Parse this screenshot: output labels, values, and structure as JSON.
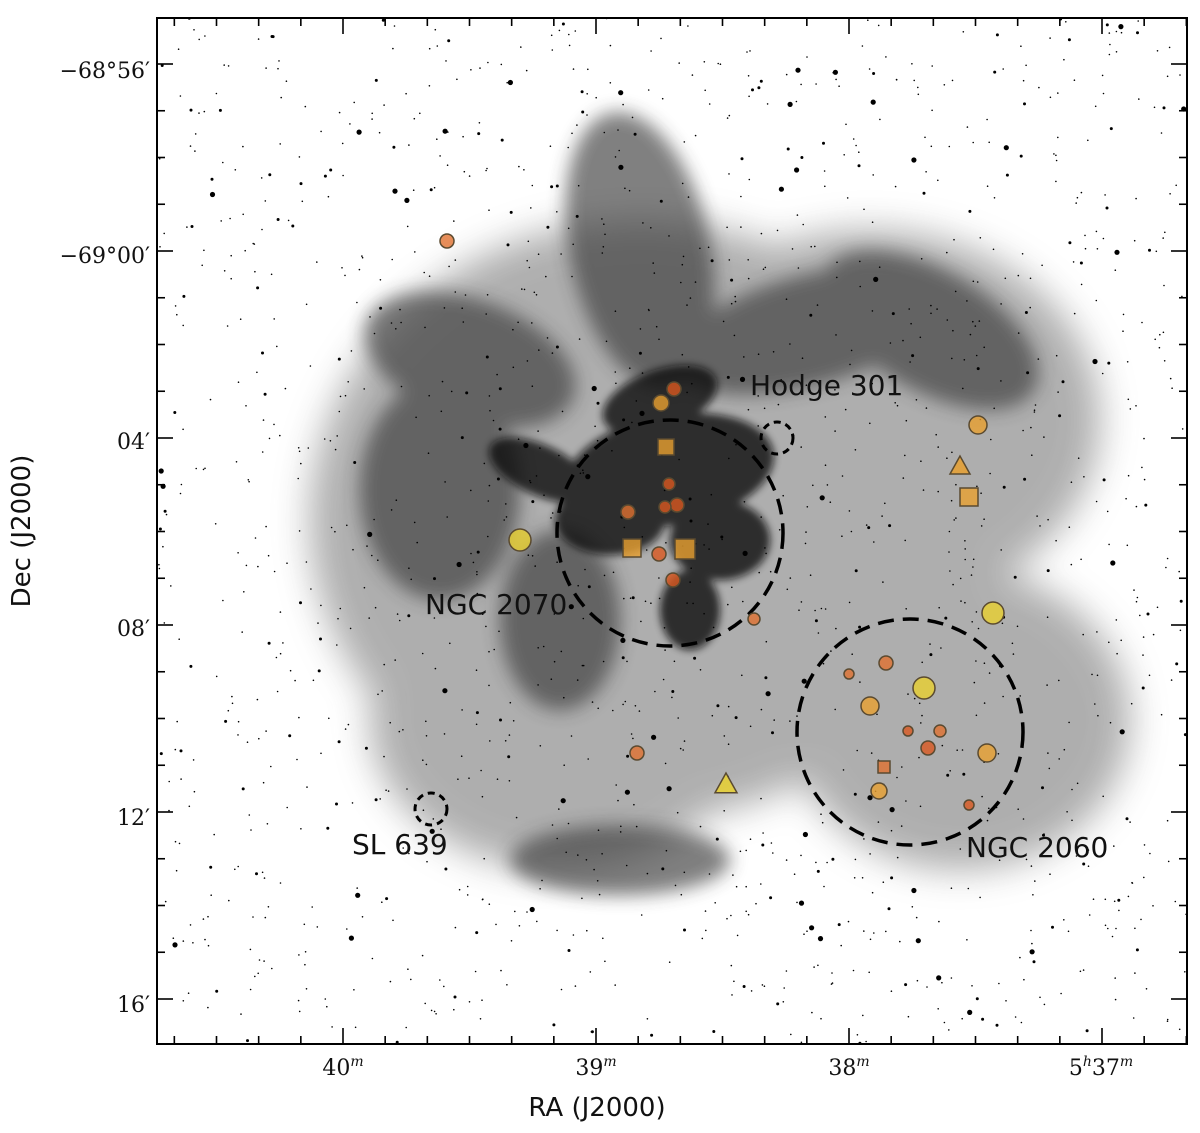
{
  "axes": {
    "xlabel": "RA (J2000)",
    "ylabel": "Dec (J2000)",
    "ra_ticks": [
      {
        "main": "40",
        "sup": "m"
      },
      {
        "main": "39",
        "sup": "m"
      },
      {
        "main": "38",
        "sup": "m"
      },
      {
        "main": "5",
        "sup": "h",
        "main2": "37",
        "sup2": "m"
      }
    ],
    "dec_ticks": [
      "−68°56′",
      "−69°00′",
      "04′",
      "08′",
      "12′",
      "16′"
    ]
  },
  "labels": {
    "ngc2070": "NGC 2070",
    "ngc2060": "NGC 2060",
    "hodge301": "Hodge 301",
    "sl639": "SL 639"
  },
  "colors": {
    "nebula": "#1a1a1a",
    "marker_orange": "#e07030",
    "marker_darkorange": "#d9581f",
    "marker_amber": "#e8a030",
    "marker_yellow": "#e8d030",
    "marker_edge": "#5a4a30",
    "cluster_circle": "#000000"
  },
  "markers": [
    {
      "shape": "circle",
      "color": "marker_orange",
      "size": "small"
    },
    {
      "shape": "circle",
      "color": "marker_amber",
      "size": "medium"
    },
    {
      "shape": "circle",
      "color": "marker_yellow",
      "size": "large"
    },
    {
      "shape": "square",
      "color": "marker_amber",
      "size": "medium"
    },
    {
      "shape": "triangle",
      "color": "marker_yellow",
      "size": "medium"
    }
  ]
}
